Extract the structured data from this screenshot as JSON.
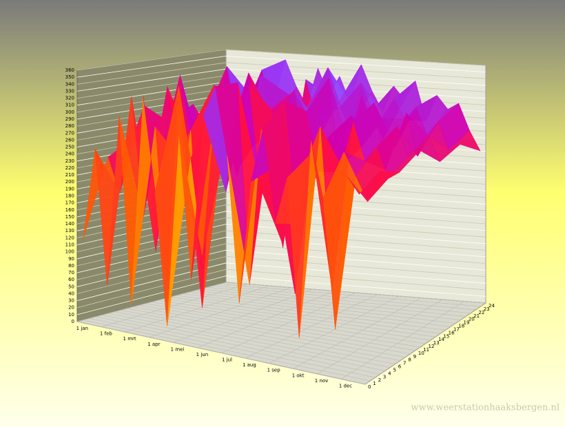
{
  "chart_data": {
    "type": "surface",
    "watermark": "www.weerstationhaaksbergen.nl",
    "categories": [
      "1 jan",
      "1 feb",
      "1 mrt",
      "1 apr",
      "1 mei",
      "1 jun",
      "1 jul",
      "1 aug",
      "1 sep",
      "1 okt",
      "1 nov",
      "1 dec"
    ],
    "hours": [
      0,
      4,
      8,
      12,
      16,
      20,
      24
    ],
    "hlim": [
      0,
      24
    ],
    "hticks": [
      0,
      1,
      2,
      3,
      4,
      5,
      6,
      7,
      8,
      9,
      10,
      11,
      12,
      13,
      14,
      15,
      16,
      17,
      18,
      19,
      20,
      21,
      22,
      23,
      24
    ],
    "zlim": [
      0,
      360
    ],
    "zticks": [
      0,
      10,
      20,
      30,
      40,
      50,
      60,
      70,
      80,
      90,
      100,
      110,
      120,
      130,
      140,
      150,
      160,
      170,
      180,
      190,
      200,
      210,
      220,
      230,
      240,
      250,
      260,
      270,
      280,
      290,
      300,
      310,
      320,
      330,
      340,
      350,
      360
    ],
    "grid": true,
    "values": [
      [
        120,
        250,
        60,
        300,
        40,
        330,
        200,
        20,
        280,
        90,
        310,
        350,
        260,
        70,
        230,
        300,
        180,
        240,
        40,
        290,
        220,
        60,
        250,
        230
      ],
      [
        230,
        180,
        320,
        150,
        280,
        60,
        340,
        240,
        110,
        300,
        200,
        350,
        80,
        290,
        240,
        330,
        170,
        260,
        300,
        90,
        270,
        240,
        210,
        250
      ],
      [
        250,
        300,
        90,
        330,
        230,
        270,
        20,
        310,
        250,
        220,
        340,
        200,
        290,
        260,
        60,
        310,
        230,
        280,
        240,
        300,
        250,
        270,
        230,
        240
      ],
      [
        210,
        270,
        340,
        240,
        120,
        330,
        280,
        200,
        350,
        260,
        300,
        110,
        330,
        240,
        290,
        350,
        220,
        300,
        260,
        320,
        230,
        290,
        250,
        260
      ],
      [
        240,
        290,
        200,
        310,
        350,
        260,
        230,
        340,
        280,
        90,
        320,
        290,
        250,
        340,
        300,
        240,
        320,
        270,
        290,
        250,
        300,
        240,
        270,
        235
      ],
      [
        260,
        220,
        320,
        280,
        300,
        340,
        250,
        310,
        230,
        330,
        270,
        350,
        300,
        260,
        330,
        290,
        250,
        310,
        280,
        300,
        260,
        280,
        240,
        250
      ],
      [
        240,
        300,
        260,
        330,
        290,
        350,
        310,
        280,
        340,
        300,
        330,
        290,
        350,
        310,
        280,
        320,
        300,
        330,
        270,
        310,
        290,
        300,
        260,
        230
      ]
    ]
  }
}
